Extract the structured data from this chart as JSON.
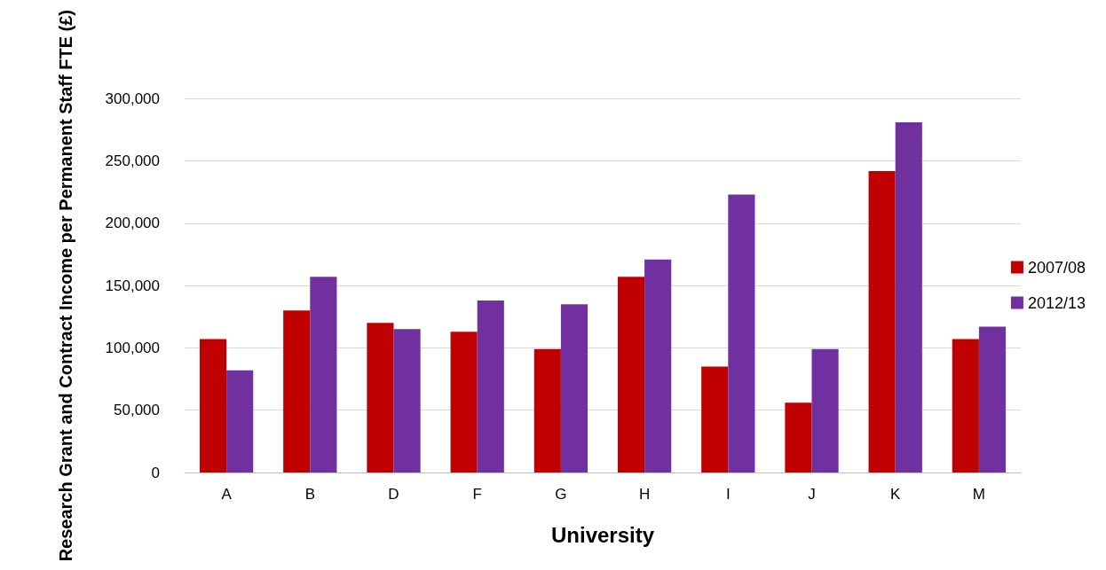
{
  "chart_data": {
    "type": "bar",
    "xlabel": "University",
    "ylabel": "Research Grant and Contract Income per Permanent Staff FTE (£)",
    "categories": [
      "A",
      "B",
      "D",
      "F",
      "G",
      "H",
      "I",
      "J",
      "K",
      "M"
    ],
    "series": [
      {
        "name": "2007/08",
        "color": "#c00000",
        "values": [
          107000,
          130000,
          120000,
          113000,
          99000,
          157000,
          85000,
          56000,
          242000,
          107000
        ]
      },
      {
        "name": "2012/13",
        "color": "#7030a0",
        "values": [
          82000,
          157000,
          115000,
          138000,
          135000,
          171000,
          223000,
          99000,
          281000,
          117000
        ]
      }
    ],
    "ylim": [
      0,
      300000
    ],
    "yticks": [
      {
        "value": 0,
        "label": "0"
      },
      {
        "value": 50000,
        "label": "50,000"
      },
      {
        "value": 100000,
        "label": "100,000"
      },
      {
        "value": 150000,
        "label": "150,000"
      },
      {
        "value": 200000,
        "label": "200,000"
      },
      {
        "value": 250000,
        "label": "250,000"
      },
      {
        "value": 300000,
        "label": "300,000"
      }
    ],
    "grid": "y",
    "legend": "right"
  }
}
